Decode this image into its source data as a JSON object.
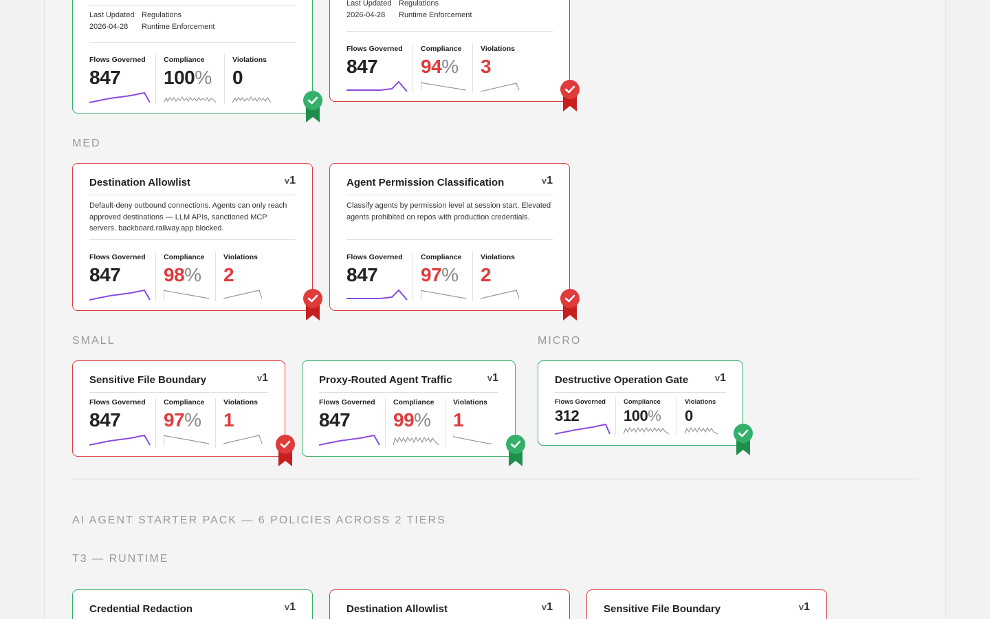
{
  "colors": {
    "accent": "#8a4be0",
    "good": "#33b06a",
    "bad": "#e03b3b",
    "muted": "#888888"
  },
  "top_row": [
    {
      "status": "pass",
      "meta_labels": [
        "Last Updated",
        "Regulations"
      ],
      "meta_values": [
        "2026-04-28",
        "Runtime Enforcement"
      ],
      "metrics": {
        "flows_label": "Flows Governed",
        "flows": "847",
        "compliance_label": "Compliance",
        "compliance": "100",
        "pct": "%",
        "violations_label": "Violations",
        "violations": "0"
      }
    },
    {
      "status": "fail",
      "meta_labels": [
        "Last Updated",
        "Regulations"
      ],
      "meta_values": [
        "2026-04-28",
        "Runtime Enforcement"
      ],
      "metrics": {
        "flows_label": "Flows Governed",
        "flows": "847",
        "compliance_label": "Compliance",
        "compliance": "94",
        "pct": "%",
        "violations_label": "Violations",
        "violations": "3"
      }
    }
  ],
  "sections": {
    "med": "MED",
    "small": "SMALL",
    "micro": "MICRO",
    "pack": "AI AGENT STARTER PACK — 6 POLICIES ACROSS 2 TIERS",
    "tier": "T3 — RUNTIME"
  },
  "med_cards": [
    {
      "title": "Destination Allowlist",
      "ver_v": "v",
      "ver_n": "1",
      "status": "fail",
      "description": "Default-deny outbound connections. Agents can only reach approved destinations — LLM APIs, sanctioned MCP servers. backboard.railway.app blocked.",
      "metrics": {
        "flows_label": "Flows Governed",
        "flows": "847",
        "compliance_label": "Compliance",
        "compliance": "98",
        "pct": "%",
        "violations_label": "Violations",
        "violations": "2"
      }
    },
    {
      "title": "Agent Permission Classification",
      "ver_v": "v",
      "ver_n": "1",
      "status": "fail",
      "description": "Classify agents by permission level at session start. Elevated agents prohibited on repos with production credentials.",
      "metrics": {
        "flows_label": "Flows Governed",
        "flows": "847",
        "compliance_label": "Compliance",
        "compliance": "97",
        "pct": "%",
        "violations_label": "Violations",
        "violations": "2"
      }
    }
  ],
  "small_cards": [
    {
      "title": "Sensitive File Boundary",
      "ver_v": "v",
      "ver_n": "1",
      "status": "fail",
      "metrics": {
        "flows_label": "Flows Governed",
        "flows": "847",
        "compliance_label": "Compliance",
        "compliance": "97",
        "pct": "%",
        "violations_label": "Violations",
        "violations": "1"
      }
    },
    {
      "title": "Proxy-Routed Agent Traffic",
      "ver_v": "v",
      "ver_n": "1",
      "status": "pass",
      "metrics": {
        "flows_label": "Flows Governed",
        "flows": "847",
        "compliance_label": "Compliance",
        "compliance": "99",
        "pct": "%",
        "violations_label": "Violations",
        "violations": "1"
      }
    }
  ],
  "micro_card": {
    "title": "Destructive Operation Gate",
    "ver_v": "v",
    "ver_n": "1",
    "status": "pass",
    "metrics": {
      "flows_label": "Flows Governed",
      "flows": "312",
      "compliance_label": "Compliance",
      "compliance": "100",
      "pct": "%",
      "violations_label": "Violations",
      "violations": "0"
    }
  },
  "t3_cards": [
    {
      "title": "Credential Redaction",
      "ver_v": "v",
      "ver_n": "1",
      "status": "pass"
    },
    {
      "title": "Destination Allowlist",
      "ver_v": "v",
      "ver_n": "1",
      "status": "fail"
    },
    {
      "title": "Sensitive File Boundary",
      "ver_v": "v",
      "ver_n": "1",
      "status": "fail"
    }
  ]
}
